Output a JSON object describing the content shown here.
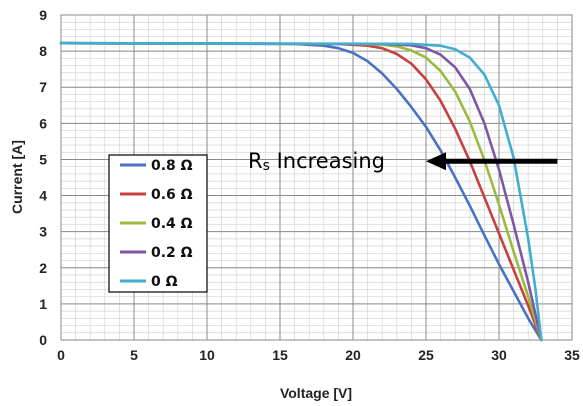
{
  "chart_data": {
    "type": "line",
    "title": "",
    "xlabel": "Voltage [V]",
    "ylabel": "Current [A]",
    "xlim": [
      0,
      35
    ],
    "ylim": [
      0,
      9
    ],
    "xticks": [
      0,
      5,
      10,
      15,
      20,
      25,
      30,
      35
    ],
    "yticks": [
      0,
      1,
      2,
      3,
      4,
      5,
      6,
      7,
      8,
      9
    ],
    "grid": true,
    "legend_position": "left-middle",
    "series": [
      {
        "name": "0.8 Ω",
        "color": "#4a72c4",
        "points": [
          [
            0,
            8.22
          ],
          [
            16,
            8.2
          ],
          [
            18,
            8.15
          ],
          [
            19,
            8.08
          ],
          [
            20,
            7.95
          ],
          [
            21,
            7.72
          ],
          [
            22,
            7.38
          ],
          [
            23,
            6.95
          ],
          [
            24,
            6.45
          ],
          [
            25,
            5.9
          ],
          [
            26,
            5.25
          ],
          [
            27,
            4.5
          ],
          [
            28,
            3.72
          ],
          [
            29,
            2.9
          ],
          [
            30,
            2.1
          ],
          [
            31,
            1.35
          ],
          [
            32,
            0.6
          ],
          [
            32.9,
            0
          ]
        ]
      },
      {
        "name": "0.6 Ω",
        "color": "#c8403c",
        "points": [
          [
            0,
            8.22
          ],
          [
            19,
            8.2
          ],
          [
            21,
            8.15
          ],
          [
            22,
            8.08
          ],
          [
            23,
            7.92
          ],
          [
            24,
            7.65
          ],
          [
            25,
            7.22
          ],
          [
            26,
            6.62
          ],
          [
            27,
            5.85
          ],
          [
            28,
            4.95
          ],
          [
            29,
            3.95
          ],
          [
            30,
            2.95
          ],
          [
            31,
            1.95
          ],
          [
            32,
            0.95
          ],
          [
            32.9,
            0
          ]
        ]
      },
      {
        "name": "0.4 Ω",
        "color": "#9bbb40",
        "points": [
          [
            0,
            8.22
          ],
          [
            20,
            8.2
          ],
          [
            22,
            8.18
          ],
          [
            23,
            8.13
          ],
          [
            24,
            8.02
          ],
          [
            25,
            7.82
          ],
          [
            26,
            7.45
          ],
          [
            27,
            6.88
          ],
          [
            28,
            6.05
          ],
          [
            29,
            4.98
          ],
          [
            30,
            3.75
          ],
          [
            31,
            2.45
          ],
          [
            32,
            1.2
          ],
          [
            32.9,
            0
          ]
        ]
      },
      {
        "name": "0.2 Ω",
        "color": "#7f55a8",
        "points": [
          [
            0,
            8.22
          ],
          [
            22,
            8.2
          ],
          [
            24,
            8.16
          ],
          [
            25,
            8.08
          ],
          [
            26,
            7.9
          ],
          [
            27,
            7.55
          ],
          [
            28,
            6.95
          ],
          [
            29,
            6.0
          ],
          [
            30,
            4.72
          ],
          [
            31,
            3.2
          ],
          [
            32,
            1.6
          ],
          [
            32.9,
            0
          ]
        ]
      },
      {
        "name": "0 Ω",
        "color": "#3faed0",
        "points": [
          [
            0,
            8.22
          ],
          [
            24,
            8.2
          ],
          [
            26,
            8.15
          ],
          [
            27,
            8.05
          ],
          [
            28,
            7.82
          ],
          [
            29,
            7.35
          ],
          [
            30,
            6.5
          ],
          [
            31,
            5.05
          ],
          [
            32,
            2.8
          ],
          [
            32.5,
            1.4
          ],
          [
            32.9,
            0
          ]
        ]
      }
    ],
    "annotation": {
      "text_main": "R",
      "text_sub": "s",
      "text_rest": " Increasing",
      "arrow_from": [
        34,
        4.95
      ],
      "arrow_to": [
        25,
        4.95
      ]
    }
  }
}
